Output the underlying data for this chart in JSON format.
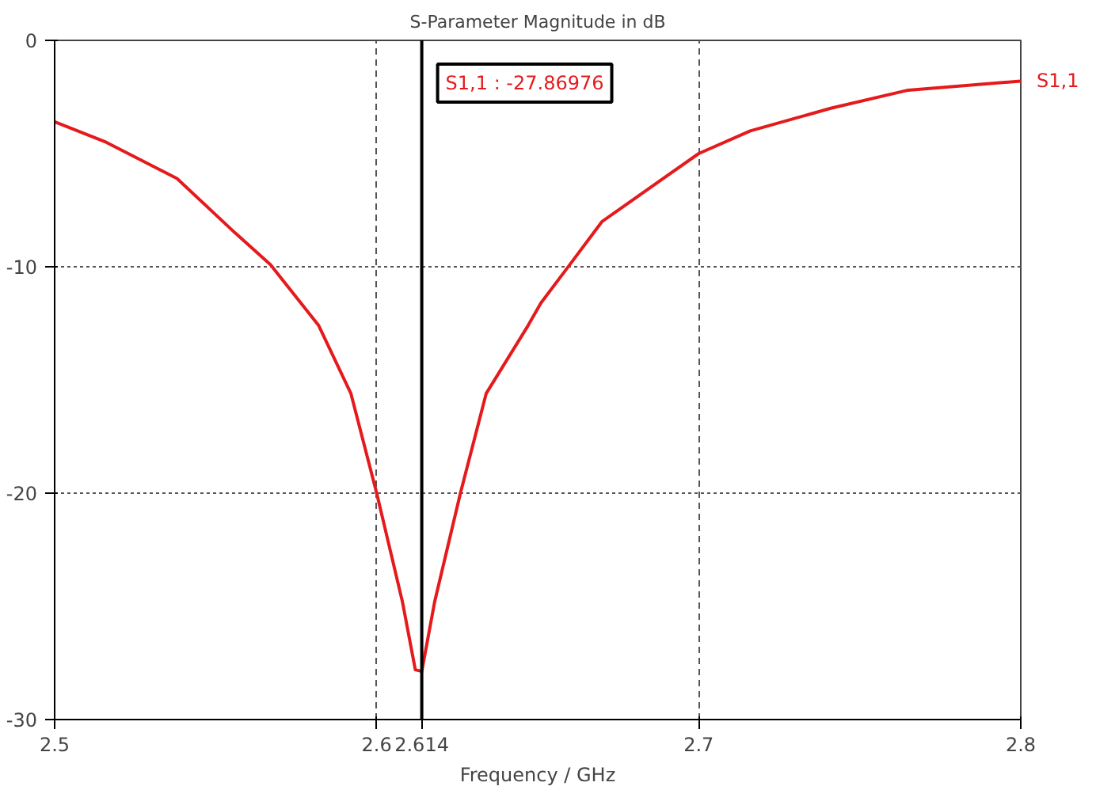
{
  "chart_data": {
    "type": "line",
    "title": "S-Parameter Magnitude in dB",
    "xlabel": "Frequency / GHz",
    "x": [
      2.5,
      2.516,
      2.538,
      2.556,
      2.567,
      2.582,
      2.592,
      2.6,
      2.608,
      2.612,
      2.614,
      2.618,
      2.626,
      2.634,
      2.647,
      2.651,
      2.66,
      2.67,
      2.689,
      2.7,
      2.716,
      2.741,
      2.765,
      2.8
    ],
    "series": [
      {
        "name": "S1,1",
        "color": "#e41a1c",
        "values": [
          -3.6,
          -4.5,
          -6.1,
          -8.5,
          -9.9,
          -12.6,
          -15.6,
          -20.0,
          -24.8,
          -27.8,
          -27.87,
          -24.8,
          -20.0,
          -15.6,
          -12.6,
          -11.6,
          -9.9,
          -8.0,
          -6.1,
          -5.0,
          -4.0,
          -3.0,
          -2.2,
          -1.8
        ]
      }
    ],
    "xlim": [
      2.5,
      2.8
    ],
    "ylim": [
      -30,
      0
    ],
    "xticks": [
      2.5,
      2.6,
      2.7,
      2.8
    ],
    "yticks": [
      -30,
      -20,
      -10,
      0
    ],
    "grid": true,
    "line_style": "solid",
    "marker": "none",
    "ref_lines": [
      {
        "axis": "x",
        "value": 2.614,
        "label": "2.614",
        "color": "#000000"
      }
    ],
    "annotations": [
      "S1,1 : -27.86976"
    ]
  }
}
